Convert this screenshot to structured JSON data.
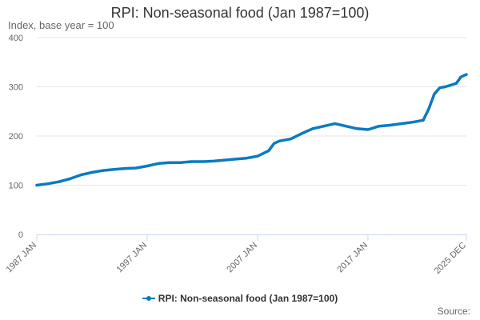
{
  "chart_data": {
    "type": "line",
    "title": "RPI: Non-seasonal food (Jan 1987=100)",
    "subtitle": "Index, base year = 100",
    "ylim": [
      0,
      400
    ],
    "yticks": [
      0,
      100,
      200,
      300,
      400
    ],
    "xlim": [
      "1987-01",
      "2025-12"
    ],
    "xticks": [
      {
        "date": "1987-01",
        "label": "1987 JAN"
      },
      {
        "date": "1997-01",
        "label": "1997 JAN"
      },
      {
        "date": "2007-01",
        "label": "2007 JAN"
      },
      {
        "date": "2017-01",
        "label": "2017 JAN"
      },
      {
        "date": "2025-12",
        "label": "2025 DEC"
      }
    ],
    "grid": "horizontal",
    "legend_position": "bottom",
    "series": [
      {
        "name": "RPI: Non-seasonal food (Jan 1987=100)",
        "color": "#0a7bc1",
        "points": [
          [
            "1987-01",
            100
          ],
          [
            "1988-01",
            103
          ],
          [
            "1989-01",
            107
          ],
          [
            "1990-01",
            113
          ],
          [
            "1991-01",
            121
          ],
          [
            "1992-01",
            126
          ],
          [
            "1993-01",
            130
          ],
          [
            "1994-01",
            132
          ],
          [
            "1995-01",
            134
          ],
          [
            "1996-01",
            135
          ],
          [
            "1997-01",
            139
          ],
          [
            "1998-01",
            144
          ],
          [
            "1999-01",
            146
          ],
          [
            "2000-01",
            146
          ],
          [
            "2001-01",
            148
          ],
          [
            "2002-01",
            148
          ],
          [
            "2003-01",
            149
          ],
          [
            "2004-01",
            151
          ],
          [
            "2005-01",
            153
          ],
          [
            "2006-01",
            155
          ],
          [
            "2007-01",
            159
          ],
          [
            "2008-01",
            170
          ],
          [
            "2008-07",
            185
          ],
          [
            "2009-01",
            190
          ],
          [
            "2010-01",
            194
          ],
          [
            "2011-01",
            205
          ],
          [
            "2012-01",
            215
          ],
          [
            "2013-01",
            220
          ],
          [
            "2014-01",
            225
          ],
          [
            "2015-01",
            220
          ],
          [
            "2016-01",
            215
          ],
          [
            "2017-01",
            213
          ],
          [
            "2018-01",
            220
          ],
          [
            "2019-01",
            222
          ],
          [
            "2020-01",
            225
          ],
          [
            "2021-01",
            228
          ],
          [
            "2022-01",
            232
          ],
          [
            "2022-07",
            255
          ],
          [
            "2023-01",
            285
          ],
          [
            "2023-07",
            298
          ],
          [
            "2024-01",
            300
          ],
          [
            "2025-01",
            307
          ],
          [
            "2025-06",
            320
          ],
          [
            "2025-12",
            325
          ]
        ]
      }
    ]
  },
  "legend": {
    "label": "RPI: Non-seasonal food (Jan 1987=100)"
  },
  "footer": {
    "source_label": "Source:"
  }
}
